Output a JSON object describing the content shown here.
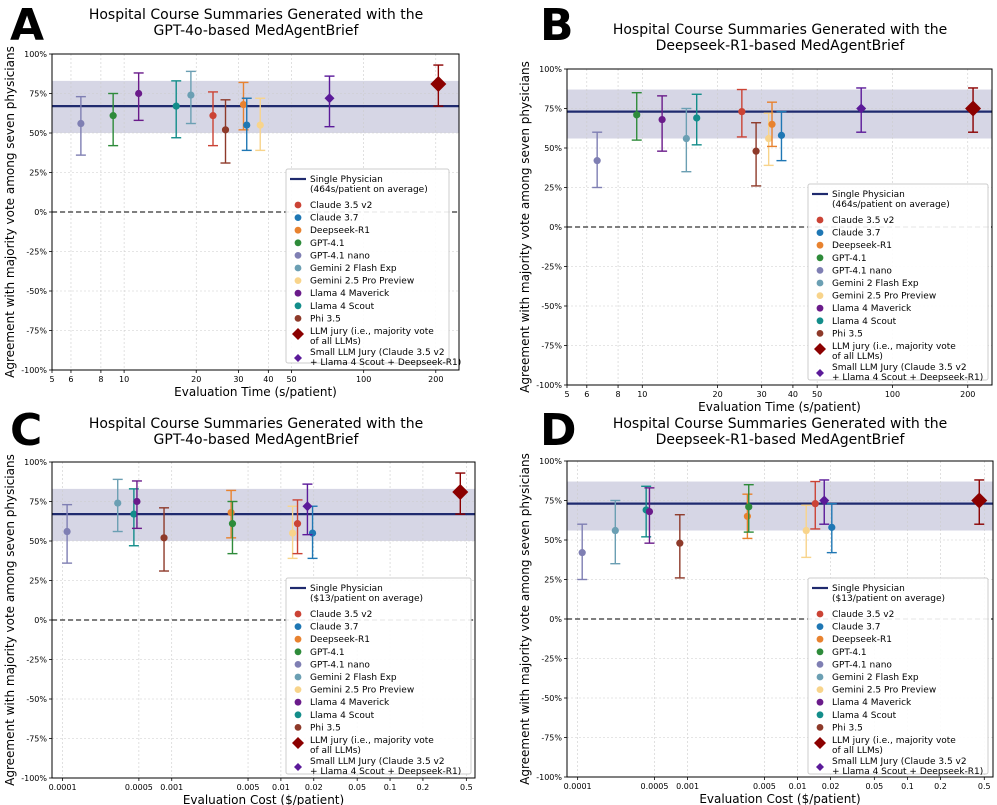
{
  "panels": [
    {
      "letter": "A",
      "title": [
        "Hospital Course Summaries Generated with the",
        "GPT-4o-based MedAgentBrief"
      ],
      "xlabel": "Evaluation Time (s/patient)",
      "ylabel": "Agreement with majority vote among seven physicians",
      "reference_label": [
        "Single Physician",
        "(464s/patient on average)"
      ]
    },
    {
      "letter": "B",
      "title": [
        "Hospital Course Summaries Generated with the",
        "Deepseek-R1-based MedAgentBrief"
      ],
      "xlabel": "Evaluation Time (s/patient)",
      "ylabel": "Agreement with majority vote among seven physicians",
      "reference_label": [
        "Single Physician",
        "(464s/patient on average)"
      ]
    },
    {
      "letter": "C",
      "title": [
        "Hospital Course Summaries Generated with the",
        "GPT-4o-based MedAgentBrief"
      ],
      "xlabel": "Evaluation Cost ($/patient)",
      "ylabel": "Agreement with majority vote among seven physicians",
      "reference_label": [
        "Single Physician",
        "($13/patient on average)"
      ]
    },
    {
      "letter": "D",
      "title": [
        "Hospital Course Summaries Generated with the",
        "Deepseek-R1-based MedAgentBrief"
      ],
      "xlabel": "Evaluation Cost ($/patient)",
      "ylabel": "Agreement with majority vote among seven physicians",
      "reference_label": [
        "Single Physician",
        "($13/patient on average)"
      ]
    }
  ],
  "legend": {
    "models": [
      {
        "name": "Claude 3.5 v2",
        "color": "#cb4335"
      },
      {
        "name": "Claude 3.7",
        "color": "#1f77b4"
      },
      {
        "name": "Deepseek-R1",
        "color": "#e8822f"
      },
      {
        "name": "GPT-4.1",
        "color": "#2e8b3a"
      },
      {
        "name": "GPT-4.1 nano",
        "color": "#7f7fb3"
      },
      {
        "name": "Gemini 2 Flash Exp",
        "color": "#6b9fb3"
      },
      {
        "name": "Gemini 2.5 Pro Preview",
        "color": "#f8d48b"
      },
      {
        "name": "Llama 4 Maverick",
        "color": "#6a1b8a"
      },
      {
        "name": "Llama 4 Scout",
        "color": "#138d8a"
      },
      {
        "name": "Phi 3.5",
        "color": "#8e3a2a"
      }
    ],
    "llm_jury": [
      "LLM jury (i.e., majority vote",
      "of all LLMs)"
    ],
    "small_jury": [
      "Small LLM Jury (Claude 3.5 v2",
      "+ Llama 4 Scout + Deepseek-R1)"
    ],
    "llm_jury_color": "#8b0000",
    "small_jury_color": "#5b1a99",
    "reference_color": "#1f2a6e",
    "band_color": "#cfcfe0"
  },
  "chart_data": [
    {
      "panel": "A",
      "type": "scatter",
      "xscale": "log",
      "xlim": [
        5,
        250
      ],
      "ylim": [
        -100,
        100
      ],
      "xticks": [
        "5",
        "6",
        "8",
        "10",
        "20",
        "30",
        "40",
        "50",
        "100",
        "200"
      ],
      "xtick_values": [
        5,
        6,
        8,
        10,
        20,
        30,
        40,
        50,
        100,
        200
      ],
      "yticks": [
        "-100%",
        "-75%",
        "-50%",
        "-25%",
        "0%",
        "25%",
        "50%",
        "75%",
        "100%"
      ],
      "ytick_values": [
        -100,
        -75,
        -50,
        -25,
        0,
        25,
        50,
        75,
        100
      ],
      "reference": {
        "value": 67,
        "band": [
          50,
          83
        ]
      },
      "points": [
        {
          "model": "GPT-4.1 nano",
          "x": 6.6,
          "y": 56,
          "low": 36,
          "high": 73
        },
        {
          "model": "GPT-4.1",
          "x": 9.0,
          "y": 61,
          "low": 42,
          "high": 75
        },
        {
          "model": "Llama 4 Maverick",
          "x": 11.5,
          "y": 75,
          "low": 58,
          "high": 88
        },
        {
          "model": "Llama 4 Scout",
          "x": 16.5,
          "y": 67,
          "low": 47,
          "high": 83
        },
        {
          "model": "Gemini 2 Flash Exp",
          "x": 19.0,
          "y": 74,
          "low": 56,
          "high": 89
        },
        {
          "model": "Claude 3.5 v2",
          "x": 23.5,
          "y": 61,
          "low": 42,
          "high": 76
        },
        {
          "model": "Phi 3.5",
          "x": 26.5,
          "y": 52,
          "low": 31,
          "high": 71
        },
        {
          "model": "Deepseek-R1",
          "x": 31.5,
          "y": 68,
          "low": 52,
          "high": 82
        },
        {
          "model": "Claude 3.7",
          "x": 32.5,
          "y": 55,
          "low": 39,
          "high": 72
        },
        {
          "model": "Gemini 2.5 Pro Preview",
          "x": 37.0,
          "y": 55,
          "low": 39,
          "high": 72
        }
      ],
      "small_jury": {
        "x": 72,
        "y": 72,
        "low": 54,
        "high": 86
      },
      "llm_jury": {
        "x": 205,
        "y": 81,
        "low": 67,
        "high": 93
      }
    },
    {
      "panel": "B",
      "type": "scatter",
      "xscale": "log",
      "xlim": [
        5,
        250
      ],
      "ylim": [
        -100,
        100
      ],
      "xticks": [
        "5",
        "6",
        "8",
        "10",
        "20",
        "30",
        "40",
        "50",
        "100",
        "200"
      ],
      "xtick_values": [
        5,
        6,
        8,
        10,
        20,
        30,
        40,
        50,
        100,
        200
      ],
      "yticks": [
        "-100%",
        "-75%",
        "-50%",
        "-25%",
        "0%",
        "25%",
        "50%",
        "75%",
        "100%"
      ],
      "ytick_values": [
        -100,
        -75,
        -50,
        -25,
        0,
        25,
        50,
        75,
        100
      ],
      "reference": {
        "value": 73,
        "band": [
          56,
          87
        ]
      },
      "points": [
        {
          "model": "GPT-4.1 nano",
          "x": 6.6,
          "y": 42,
          "low": 25,
          "high": 60
        },
        {
          "model": "GPT-4.1",
          "x": 9.5,
          "y": 71,
          "low": 55,
          "high": 85
        },
        {
          "model": "Llama 4 Maverick",
          "x": 12.0,
          "y": 68,
          "low": 48,
          "high": 83
        },
        {
          "model": "Gemini 2 Flash Exp",
          "x": 15.0,
          "y": 56,
          "low": 35,
          "high": 75
        },
        {
          "model": "Llama 4 Scout",
          "x": 16.5,
          "y": 69,
          "low": 52,
          "high": 84
        },
        {
          "model": "Claude 3.5 v2",
          "x": 25.0,
          "y": 73,
          "low": 57,
          "high": 87
        },
        {
          "model": "Phi 3.5",
          "x": 28.5,
          "y": 48,
          "low": 26,
          "high": 66
        },
        {
          "model": "Gemini 2.5 Pro Preview",
          "x": 32.0,
          "y": 56,
          "low": 39,
          "high": 72
        },
        {
          "model": "Deepseek-R1",
          "x": 33.0,
          "y": 65,
          "low": 51,
          "high": 79
        },
        {
          "model": "Claude 3.7",
          "x": 36.0,
          "y": 58,
          "low": 42,
          "high": 73
        }
      ],
      "small_jury": {
        "x": 75,
        "y": 75,
        "low": 60,
        "high": 88
      },
      "llm_jury": {
        "x": 210,
        "y": 75,
        "low": 60,
        "high": 88
      }
    },
    {
      "panel": "C",
      "type": "scatter",
      "xscale": "log",
      "xlim": [
        8e-05,
        0.6
      ],
      "ylim": [
        -100,
        100
      ],
      "xticks": [
        "0.0001",
        "0.0005",
        "0.001",
        "0.005",
        "0.01",
        "0.02",
        "0.05",
        "0.1",
        "0.2",
        "0.5"
      ],
      "xtick_values": [
        0.0001,
        0.0005,
        0.001,
        0.005,
        0.01,
        0.02,
        0.05,
        0.1,
        0.2,
        0.5
      ],
      "yticks": [
        "-100%",
        "-75%",
        "-50%",
        "-25%",
        "0%",
        "25%",
        "50%",
        "75%",
        "100%"
      ],
      "ytick_values": [
        -100,
        -75,
        -50,
        -25,
        0,
        25,
        50,
        75,
        100
      ],
      "reference": {
        "value": 67,
        "band": [
          50,
          83
        ]
      },
      "points": [
        {
          "model": "GPT-4.1 nano",
          "x": 0.00011,
          "y": 56,
          "low": 36,
          "high": 73
        },
        {
          "model": "Gemini 2 Flash Exp",
          "x": 0.00032,
          "y": 74,
          "low": 56,
          "high": 89
        },
        {
          "model": "Llama 4 Scout",
          "x": 0.00045,
          "y": 67,
          "low": 47,
          "high": 83
        },
        {
          "model": "Llama 4 Maverick",
          "x": 0.00048,
          "y": 75,
          "low": 58,
          "high": 88
        },
        {
          "model": "Phi 3.5",
          "x": 0.00085,
          "y": 52,
          "low": 31,
          "high": 71
        },
        {
          "model": "Deepseek-R1",
          "x": 0.0035,
          "y": 68,
          "low": 52,
          "high": 82
        },
        {
          "model": "GPT-4.1",
          "x": 0.0036,
          "y": 61,
          "low": 42,
          "high": 75
        },
        {
          "model": "Gemini 2.5 Pro Preview",
          "x": 0.0128,
          "y": 55,
          "low": 39,
          "high": 72
        },
        {
          "model": "Claude 3.5 v2",
          "x": 0.0142,
          "y": 61,
          "low": 42,
          "high": 76
        },
        {
          "model": "Claude 3.7",
          "x": 0.0195,
          "y": 55,
          "low": 39,
          "high": 72
        }
      ],
      "small_jury": {
        "x": 0.0175,
        "y": 72,
        "low": 54,
        "high": 86
      },
      "llm_jury": {
        "x": 0.44,
        "y": 81,
        "low": 67,
        "high": 93
      }
    },
    {
      "panel": "D",
      "type": "scatter",
      "xscale": "log",
      "xlim": [
        8e-05,
        0.6
      ],
      "ylim": [
        -100,
        100
      ],
      "xticks": [
        "0.0001",
        "0.0005",
        "0.001",
        "0.005",
        "0.01",
        "0.02",
        "0.05",
        "0.1",
        "0.2",
        "0.5"
      ],
      "xtick_values": [
        0.0001,
        0.0005,
        0.001,
        0.005,
        0.01,
        0.02,
        0.05,
        0.1,
        0.2,
        0.5
      ],
      "yticks": [
        "-100%",
        "-75%",
        "-50%",
        "-25%",
        "0%",
        "25%",
        "50%",
        "75%",
        "100%"
      ],
      "ytick_values": [
        -100,
        -75,
        -50,
        -25,
        0,
        25,
        50,
        75,
        100
      ],
      "reference": {
        "value": 73,
        "band": [
          56,
          87
        ]
      },
      "points": [
        {
          "model": "GPT-4.1 nano",
          "x": 0.00011,
          "y": 42,
          "low": 25,
          "high": 60
        },
        {
          "model": "Gemini 2 Flash Exp",
          "x": 0.00022,
          "y": 56,
          "low": 35,
          "high": 75
        },
        {
          "model": "Llama 4 Scout",
          "x": 0.00042,
          "y": 69,
          "low": 52,
          "high": 84
        },
        {
          "model": "Llama 4 Maverick",
          "x": 0.00045,
          "y": 68,
          "low": 48,
          "high": 83
        },
        {
          "model": "Phi 3.5",
          "x": 0.00085,
          "y": 48,
          "low": 26,
          "high": 66
        },
        {
          "model": "Deepseek-R1",
          "x": 0.0035,
          "y": 65,
          "low": 51,
          "high": 79
        },
        {
          "model": "GPT-4.1",
          "x": 0.0036,
          "y": 71,
          "low": 55,
          "high": 85
        },
        {
          "model": "Gemini 2.5 Pro Preview",
          "x": 0.012,
          "y": 56,
          "low": 39,
          "high": 72
        },
        {
          "model": "Claude 3.5 v2",
          "x": 0.0145,
          "y": 73,
          "low": 57,
          "high": 87
        },
        {
          "model": "Claude 3.7",
          "x": 0.0205,
          "y": 58,
          "low": 42,
          "high": 73
        }
      ],
      "small_jury": {
        "x": 0.0175,
        "y": 75,
        "low": 60,
        "high": 88
      },
      "llm_jury": {
        "x": 0.45,
        "y": 75,
        "low": 60,
        "high": 88
      }
    }
  ]
}
